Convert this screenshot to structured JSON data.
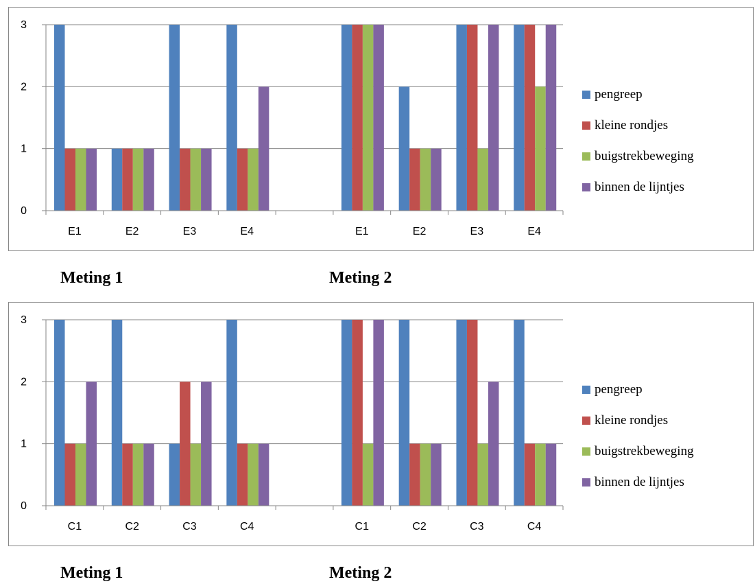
{
  "chart_data": [
    {
      "type": "bar",
      "categories": [
        "E1",
        "E2",
        "E3",
        "E4",
        "",
        "E1",
        "E2",
        "E3",
        "E4"
      ],
      "series": [
        {
          "name": "pengreep",
          "color": "#4F81BD",
          "values": [
            3,
            1,
            3,
            3,
            null,
            3,
            2,
            3,
            3
          ]
        },
        {
          "name": "kleine rondjes",
          "color": "#C0504D",
          "values": [
            1,
            1,
            1,
            1,
            null,
            3,
            1,
            3,
            3
          ]
        },
        {
          "name": "buigstrekbeweging",
          "color": "#9BBB59",
          "values": [
            1,
            1,
            1,
            1,
            null,
            3,
            1,
            1,
            2
          ]
        },
        {
          "name": "binnen de lijntjes",
          "color": "#8064A2",
          "values": [
            1,
            1,
            1,
            2,
            null,
            3,
            1,
            3,
            3
          ]
        }
      ],
      "ylim": [
        0,
        3
      ],
      "yticks": [
        "0",
        "1",
        "2",
        "3"
      ],
      "grid": true,
      "legend": "right"
    },
    {
      "type": "bar",
      "categories": [
        "C1",
        "C2",
        "C3",
        "C4",
        "",
        "C1",
        "C2",
        "C3",
        "C4"
      ],
      "series": [
        {
          "name": "pengreep",
          "color": "#4F81BD",
          "values": [
            3,
            3,
            1,
            3,
            null,
            3,
            3,
            3,
            3
          ]
        },
        {
          "name": "kleine rondjes",
          "color": "#C0504D",
          "values": [
            1,
            1,
            2,
            1,
            null,
            3,
            1,
            3,
            1
          ]
        },
        {
          "name": "buigstrekbeweging",
          "color": "#9BBB59",
          "values": [
            1,
            1,
            1,
            1,
            null,
            1,
            1,
            1,
            1
          ]
        },
        {
          "name": "binnen de lijntjes",
          "color": "#8064A2",
          "values": [
            2,
            1,
            2,
            1,
            null,
            3,
            1,
            2,
            1
          ]
        }
      ],
      "ylim": [
        0,
        3
      ],
      "yticks": [
        "0",
        "1",
        "2",
        "3"
      ],
      "grid": true,
      "legend": "right"
    }
  ],
  "captions": {
    "top_left": "Meting 1",
    "top_right": "Meting 2",
    "bottom_left": "Meting 1",
    "bottom_right": "Meting 2"
  }
}
